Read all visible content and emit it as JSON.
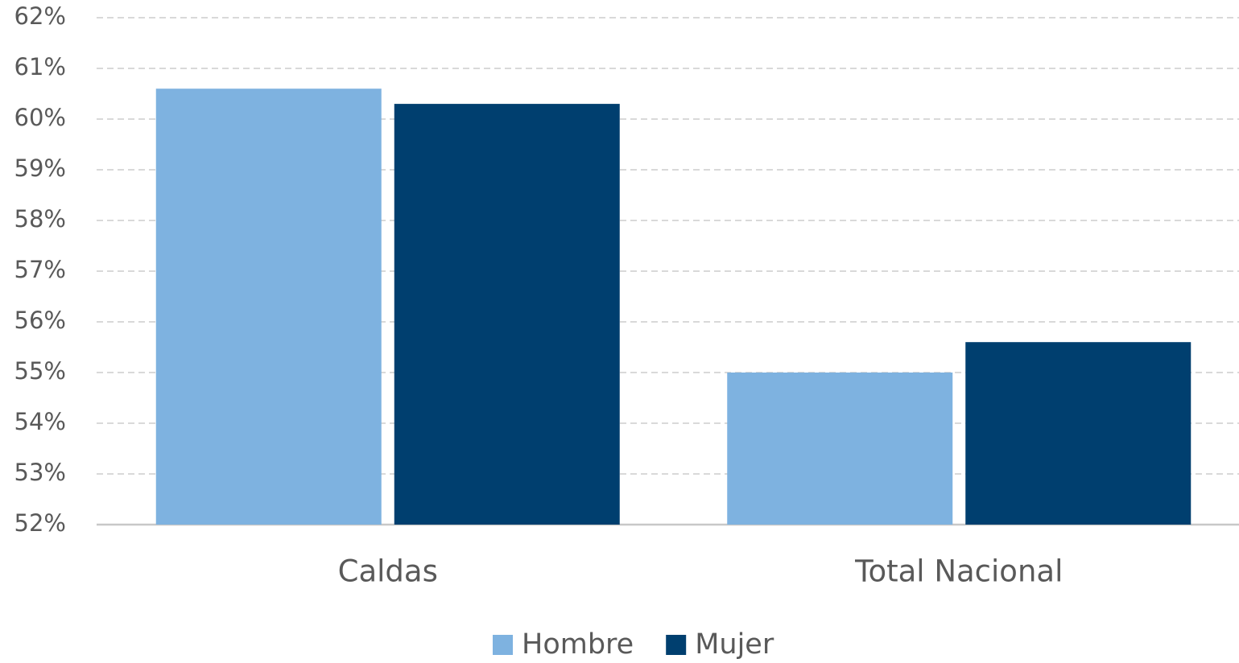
{
  "chart_data": {
    "type": "bar",
    "categories": [
      "Caldas",
      "Total Nacional"
    ],
    "series": [
      {
        "name": "Hombre",
        "color": "#7eb2e0",
        "values": [
          60.6,
          55.0
        ]
      },
      {
        "name": "Mujer",
        "color": "#003f6f",
        "values": [
          60.3,
          55.6
        ]
      }
    ],
    "ylim": [
      52,
      62
    ],
    "yticks": [
      {
        "value": 52,
        "label": "52%"
      },
      {
        "value": 53,
        "label": "53%"
      },
      {
        "value": 54,
        "label": "54%"
      },
      {
        "value": 55,
        "label": "55%"
      },
      {
        "value": 56,
        "label": "56%"
      },
      {
        "value": 57,
        "label": "57%"
      },
      {
        "value": 58,
        "label": "58%"
      },
      {
        "value": 59,
        "label": "59%"
      },
      {
        "value": 60,
        "label": "60%"
      },
      {
        "value": 61,
        "label": "61%"
      },
      {
        "value": 62,
        "label": "62%"
      }
    ],
    "grid": true,
    "legend": "bottom"
  }
}
